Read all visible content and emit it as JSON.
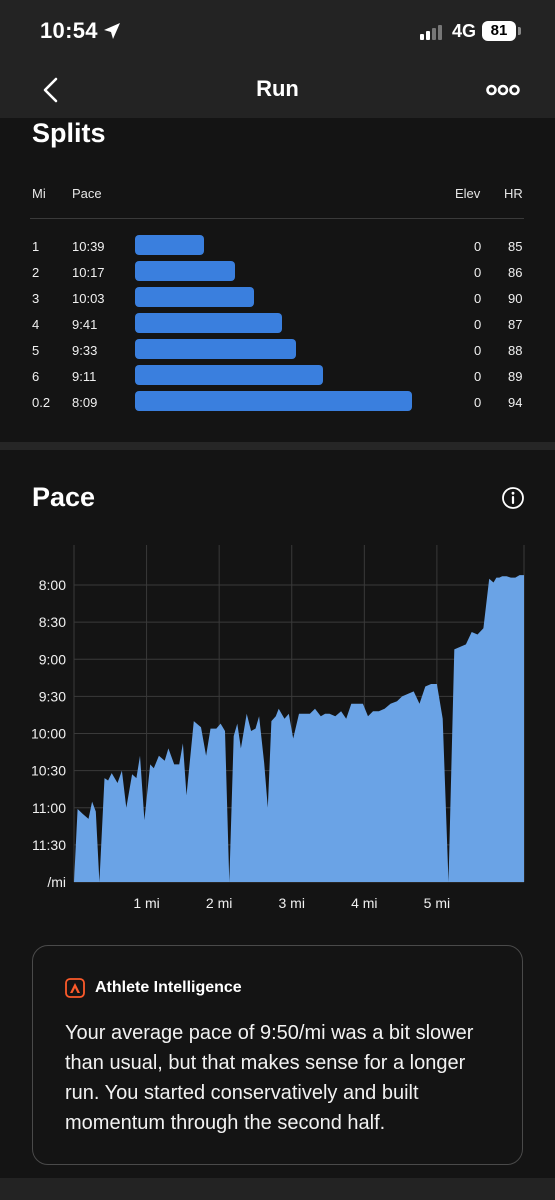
{
  "status": {
    "time": "10:54",
    "network": "4G",
    "battery": "81"
  },
  "nav": {
    "title": "Run",
    "back_icon": "chevron-left-icon",
    "more_icon": "more-icon"
  },
  "splits": {
    "title": "Splits",
    "headers": {
      "mi": "Mi",
      "pace": "Pace",
      "elev": "Elev",
      "hr": "HR"
    },
    "bar_color": "#3a7fde",
    "rows": [
      {
        "mi": "1",
        "pace": "10:39",
        "elev": "0",
        "hr": "85",
        "bar_fraction": 0.25
      },
      {
        "mi": "2",
        "pace": "10:17",
        "elev": "0",
        "hr": "86",
        "bar_fraction": 0.36
      },
      {
        "mi": "3",
        "pace": "10:03",
        "elev": "0",
        "hr": "90",
        "bar_fraction": 0.43
      },
      {
        "mi": "4",
        "pace": "9:41",
        "elev": "0",
        "hr": "87",
        "bar_fraction": 0.53
      },
      {
        "mi": "5",
        "pace": "9:33",
        "elev": "0",
        "hr": "88",
        "bar_fraction": 0.58
      },
      {
        "mi": "6",
        "pace": "9:11",
        "elev": "0",
        "hr": "89",
        "bar_fraction": 0.68
      },
      {
        "mi": "0.2",
        "pace": "8:09",
        "elev": "0",
        "hr": "94",
        "bar_fraction": 1.0
      }
    ]
  },
  "pace": {
    "title": "Pace",
    "info_icon": "info-icon",
    "chart_data": {
      "type": "area",
      "color": "#6aa3e6",
      "xlim": [
        0,
        6.2
      ],
      "ylim_seconds": [
        420,
        780
      ],
      "y_reversed": true,
      "grid": true,
      "y_ticks": [
        {
          "label": "8:00",
          "sec": 480
        },
        {
          "label": "8:30",
          "sec": 510
        },
        {
          "label": "9:00",
          "sec": 540
        },
        {
          "label": "9:30",
          "sec": 570
        },
        {
          "label": "10:00",
          "sec": 600
        },
        {
          "label": "10:30",
          "sec": 630
        },
        {
          "label": "11:00",
          "sec": 660
        },
        {
          "label": "11:30",
          "sec": 690
        },
        {
          "label": "/mi",
          "sec": 720
        }
      ],
      "x_ticks": [
        {
          "label": "1 mi",
          "mi": 1
        },
        {
          "label": "2 mi",
          "mi": 2
        },
        {
          "label": "3 mi",
          "mi": 3
        },
        {
          "label": "4 mi",
          "mi": 4
        },
        {
          "label": "5 mi",
          "mi": 5
        }
      ],
      "x": [
        0,
        0.05,
        0.12,
        0.2,
        0.25,
        0.3,
        0.35,
        0.42,
        0.47,
        0.52,
        0.6,
        0.66,
        0.72,
        0.8,
        0.86,
        0.91,
        0.97,
        1.05,
        1.1,
        1.17,
        1.25,
        1.3,
        1.38,
        1.45,
        1.5,
        1.55,
        1.65,
        1.75,
        1.82,
        1.88,
        1.96,
        2.02,
        2.08,
        2.14,
        2.2,
        2.25,
        2.3,
        2.38,
        2.44,
        2.5,
        2.55,
        2.62,
        2.67,
        2.72,
        2.78,
        2.82,
        2.9,
        2.96,
        3.02,
        3.1,
        3.18,
        3.25,
        3.32,
        3.4,
        3.46,
        3.52,
        3.6,
        3.68,
        3.75,
        3.82,
        3.9,
        3.98,
        4.05,
        4.12,
        4.2,
        4.28,
        4.36,
        4.45,
        4.52,
        4.6,
        4.68,
        4.76,
        4.84,
        4.92,
        5.0,
        5.08,
        5.16,
        5.24,
        5.32,
        5.4,
        5.48,
        5.56,
        5.64,
        5.72,
        5.78,
        5.82,
        5.86,
        5.9,
        5.96,
        6.02,
        6.08,
        6.14,
        6.2
      ],
      "y": [
        720,
        661,
        665,
        669,
        655,
        663,
        720,
        636,
        638,
        632,
        640,
        630,
        660,
        633,
        636,
        618,
        670,
        625,
        628,
        618,
        622,
        612,
        625,
        625,
        608,
        650,
        590,
        595,
        618,
        596,
        596,
        592,
        598,
        720,
        602,
        592,
        612,
        584,
        598,
        596,
        586,
        624,
        660,
        590,
        586,
        580,
        588,
        584,
        604,
        584,
        584,
        584,
        580,
        586,
        584,
        584,
        586,
        582,
        588,
        576,
        576,
        576,
        586,
        582,
        582,
        580,
        576,
        574,
        570,
        568,
        566,
        576,
        562,
        560,
        560,
        588,
        720,
        532,
        530,
        528,
        518,
        520,
        515,
        475,
        478,
        474,
        474,
        473,
        473,
        474,
        474,
        472,
        472
      ]
    }
  },
  "insight": {
    "title": "Athlete Intelligence",
    "logo_icon": "athlete-intelligence-icon",
    "text": "Your average pace of 9:50/mi was a bit slower than usual, but that makes sense for a longer run. You started conservatively and built momentum through the second half."
  }
}
